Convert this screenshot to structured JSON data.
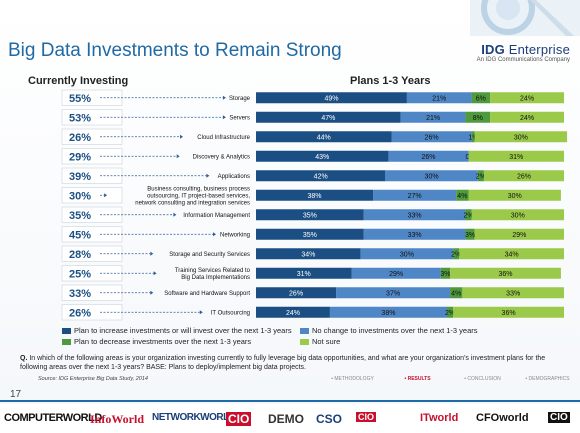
{
  "slide": {
    "title": "Big Data Investments to Remain Strong",
    "logo_main_a": "IDG ",
    "logo_main_b": "Enterprise",
    "logo_sub": "An IDG Communications Company",
    "page_number": "17",
    "question": "In which of the following areas is your organization investing currently to fully leverage big data opportunities, and what are your organization’s investment plans for the following areas over the next 1-3 years? BASE: Plans to deploy/implement big data projects.",
    "question_prefix": "Q.",
    "source": "Source: IDG Enterprise Big Data Study, 2014",
    "nav": [
      "• METHODOLOGY",
      "• RESULTS",
      "• CONCLUSION",
      "• DEMOGRAPHICS"
    ],
    "brands": [
      "COMPUTERWORLD",
      "InfoWorld",
      "NETWORKWORLD",
      "CIO",
      "DEMO",
      "CSO",
      "CIO",
      "ITworld",
      "CFOworld",
      "CIO"
    ]
  },
  "chart_data": {
    "type": "bar",
    "stacked": true,
    "orientation": "horizontal",
    "left_header": "Currently Investing",
    "right_header": "Plans 1-3 Years",
    "categories": [
      "Storage",
      "Servers",
      "Cloud Infrastructure",
      "Discovery & Analytics",
      "Applications",
      "Business consulting, business process outsourcing, IT project-based services, network consulting and integration services",
      "Information Management",
      "Networking",
      "Storage and Security Services",
      "Training Services Related to Big Data Implementations",
      "Software and Hardware Support",
      "IT Outsourcing"
    ],
    "label_lines": [
      [
        "Storage"
      ],
      [
        "Servers"
      ],
      [
        "Cloud Infrastructure"
      ],
      [
        "Discovery & Analytics"
      ],
      [
        "Applications"
      ],
      [
        "Business consulting, business process",
        "outsourcing, IT project-based services,",
        "network consulting and integration services"
      ],
      [
        "Information Management"
      ],
      [
        "Networking"
      ],
      [
        "Storage and Security Services"
      ],
      [
        "Training Services Related to",
        "Big Data Implementations"
      ],
      [
        "Software and Hardware Support"
      ],
      [
        "IT Outsourcing"
      ]
    ],
    "currently_investing": [
      "55%",
      "53%",
      "26%",
      "29%",
      "39%",
      "30%",
      "35%",
      "45%",
      "28%",
      "25%",
      "33%",
      "26%"
    ],
    "series": [
      {
        "name": "Plan to increase investments or will invest over the next 1-3 years",
        "color": "#1b4f84",
        "values": [
          49,
          47,
          44,
          43,
          42,
          38,
          35,
          35,
          34,
          31,
          26,
          24
        ]
      },
      {
        "name": "No change to investments over the next 1-3 years",
        "color": "#4f86c6",
        "values": [
          21,
          21,
          26,
          26,
          30,
          27,
          33,
          33,
          30,
          29,
          37,
          38
        ]
      },
      {
        "name": "Plan to decrease investments over the next 1-3 years",
        "color": "#4e9a3c",
        "values": [
          6,
          8,
          1,
          0,
          2,
          4,
          2,
          3,
          2,
          3,
          4,
          2
        ]
      },
      {
        "name": "Not sure",
        "color": "#9bc94a",
        "values": [
          24,
          24,
          30,
          31,
          26,
          30,
          30,
          29,
          34,
          36,
          33,
          36
        ]
      }
    ],
    "xlim": [
      0,
      100
    ]
  }
}
